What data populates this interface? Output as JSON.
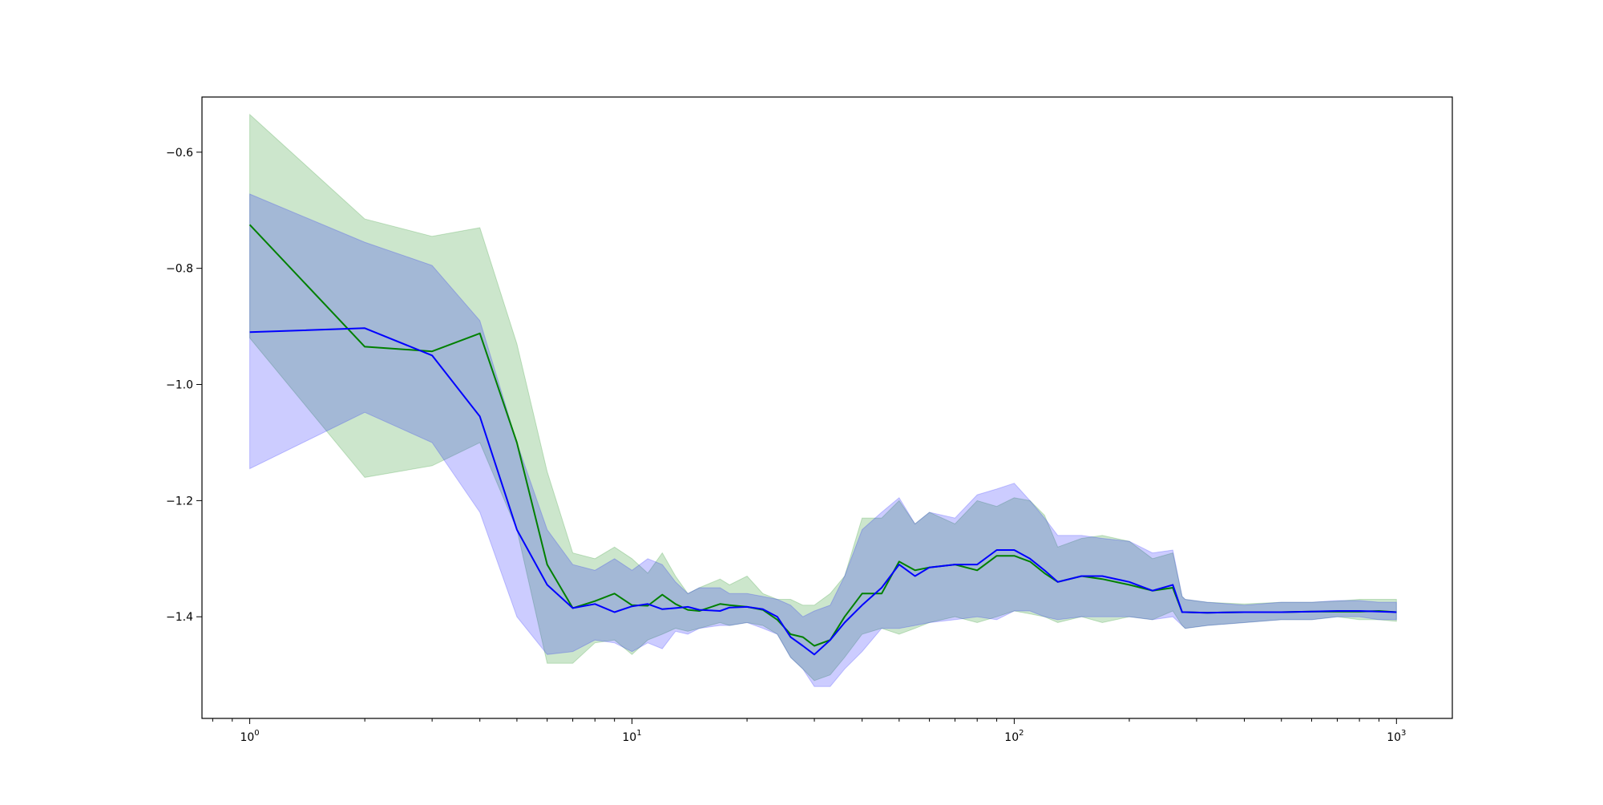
{
  "chart_data": {
    "type": "line",
    "title": "",
    "xlabel": "",
    "ylabel": "",
    "xscale": "log",
    "xlim": [
      0.75,
      1400
    ],
    "ylim": [
      -1.575,
      -0.505
    ],
    "grid": false,
    "x_ticks": [
      {
        "value": 1,
        "base": "10",
        "exp": "0"
      },
      {
        "value": 10,
        "base": "10",
        "exp": "1"
      },
      {
        "value": 100,
        "base": "10",
        "exp": "2"
      },
      {
        "value": 1000,
        "base": "10",
        "exp": "3"
      }
    ],
    "y_ticks": [
      {
        "value": -0.6,
        "label": "−0.6"
      },
      {
        "value": -0.8,
        "label": "−0.8"
      },
      {
        "value": -1.0,
        "label": "−1.0"
      },
      {
        "value": -1.2,
        "label": "−1.2"
      },
      {
        "value": -1.4,
        "label": "−1.4"
      }
    ],
    "series": [
      {
        "color": "#008000",
        "band_color": "#008000",
        "band_opacity": 0.2,
        "x": [
          1,
          2,
          3,
          4,
          5,
          6,
          7,
          8,
          9,
          10,
          11,
          12,
          13,
          14,
          15,
          17,
          18,
          20,
          22,
          24,
          26,
          28,
          30,
          33,
          36,
          40,
          45,
          50,
          55,
          60,
          70,
          80,
          90,
          100,
          110,
          120,
          130,
          150,
          170,
          200,
          230,
          260,
          275,
          280,
          320,
          400,
          500,
          600,
          700,
          800,
          900,
          1000
        ],
        "y": [
          -0.725,
          -0.935,
          -0.943,
          -0.912,
          -1.1,
          -1.31,
          -1.385,
          -1.373,
          -1.36,
          -1.38,
          -1.381,
          -1.362,
          -1.378,
          -1.388,
          -1.39,
          -1.378,
          -1.38,
          -1.383,
          -1.388,
          -1.405,
          -1.43,
          -1.435,
          -1.45,
          -1.44,
          -1.4,
          -1.36,
          -1.36,
          -1.305,
          -1.32,
          -1.315,
          -1.31,
          -1.32,
          -1.295,
          -1.295,
          -1.305,
          -1.325,
          -1.34,
          -1.33,
          -1.335,
          -1.345,
          -1.355,
          -1.35,
          -1.392,
          -1.392,
          -1.393,
          -1.392,
          -1.392,
          -1.391,
          -1.391,
          -1.391,
          -1.39,
          -1.392
        ],
        "lower": [
          -0.92,
          -1.16,
          -1.14,
          -1.1,
          -1.25,
          -1.48,
          -1.48,
          -1.445,
          -1.44,
          -1.465,
          -1.44,
          -1.43,
          -1.42,
          -1.425,
          -1.42,
          -1.41,
          -1.415,
          -1.41,
          -1.415,
          -1.43,
          -1.47,
          -1.49,
          -1.51,
          -1.5,
          -1.47,
          -1.43,
          -1.42,
          -1.43,
          -1.42,
          -1.41,
          -1.4,
          -1.41,
          -1.4,
          -1.39,
          -1.395,
          -1.4,
          -1.41,
          -1.4,
          -1.41,
          -1.4,
          -1.405,
          -1.39,
          -1.415,
          -1.42,
          -1.415,
          -1.41,
          -1.405,
          -1.405,
          -1.4,
          -1.405,
          -1.405,
          -1.408
        ],
        "upper": [
          -0.535,
          -0.715,
          -0.745,
          -0.73,
          -0.93,
          -1.15,
          -1.29,
          -1.3,
          -1.28,
          -1.3,
          -1.325,
          -1.29,
          -1.33,
          -1.36,
          -1.35,
          -1.335,
          -1.345,
          -1.33,
          -1.36,
          -1.37,
          -1.37,
          -1.38,
          -1.38,
          -1.36,
          -1.33,
          -1.23,
          -1.23,
          -1.2,
          -1.24,
          -1.22,
          -1.24,
          -1.2,
          -1.21,
          -1.195,
          -1.2,
          -1.225,
          -1.28,
          -1.265,
          -1.26,
          -1.27,
          -1.3,
          -1.29,
          -1.365,
          -1.37,
          -1.375,
          -1.378,
          -1.375,
          -1.375,
          -1.373,
          -1.37,
          -1.37,
          -1.37
        ]
      },
      {
        "color": "#0000ff",
        "band_color": "#0000ff",
        "band_opacity": 0.2,
        "x": [
          1,
          2,
          3,
          4,
          5,
          6,
          7,
          8,
          9,
          10,
          11,
          12,
          13,
          14,
          15,
          17,
          18,
          20,
          22,
          24,
          26,
          28,
          30,
          33,
          36,
          40,
          45,
          50,
          55,
          60,
          70,
          80,
          90,
          100,
          110,
          120,
          130,
          150,
          170,
          200,
          230,
          260,
          275,
          280,
          320,
          400,
          500,
          600,
          700,
          800,
          900,
          1000
        ],
        "y": [
          -0.91,
          -0.903,
          -0.95,
          -1.055,
          -1.25,
          -1.345,
          -1.385,
          -1.378,
          -1.392,
          -1.382,
          -1.378,
          -1.387,
          -1.385,
          -1.383,
          -1.388,
          -1.39,
          -1.384,
          -1.383,
          -1.387,
          -1.4,
          -1.435,
          -1.45,
          -1.465,
          -1.44,
          -1.41,
          -1.38,
          -1.35,
          -1.31,
          -1.33,
          -1.315,
          -1.31,
          -1.31,
          -1.285,
          -1.285,
          -1.3,
          -1.32,
          -1.34,
          -1.33,
          -1.33,
          -1.34,
          -1.355,
          -1.345,
          -1.392,
          -1.392,
          -1.393,
          -1.392,
          -1.392,
          -1.391,
          -1.39,
          -1.39,
          -1.391,
          -1.392
        ],
        "lower": [
          -1.145,
          -1.048,
          -1.1,
          -1.22,
          -1.4,
          -1.465,
          -1.46,
          -1.44,
          -1.445,
          -1.46,
          -1.445,
          -1.455,
          -1.425,
          -1.43,
          -1.42,
          -1.415,
          -1.415,
          -1.41,
          -1.42,
          -1.43,
          -1.47,
          -1.49,
          -1.52,
          -1.52,
          -1.49,
          -1.46,
          -1.42,
          -1.42,
          -1.415,
          -1.41,
          -1.405,
          -1.4,
          -1.405,
          -1.39,
          -1.39,
          -1.4,
          -1.405,
          -1.4,
          -1.4,
          -1.4,
          -1.405,
          -1.4,
          -1.415,
          -1.42,
          -1.415,
          -1.41,
          -1.405,
          -1.405,
          -1.4,
          -1.4,
          -1.405,
          -1.405
        ],
        "upper": [
          -0.672,
          -0.755,
          -0.795,
          -0.89,
          -1.1,
          -1.25,
          -1.31,
          -1.32,
          -1.3,
          -1.32,
          -1.3,
          -1.31,
          -1.34,
          -1.36,
          -1.35,
          -1.35,
          -1.36,
          -1.36,
          -1.365,
          -1.37,
          -1.38,
          -1.4,
          -1.39,
          -1.38,
          -1.33,
          -1.25,
          -1.22,
          -1.195,
          -1.24,
          -1.22,
          -1.23,
          -1.19,
          -1.18,
          -1.17,
          -1.2,
          -1.23,
          -1.26,
          -1.26,
          -1.265,
          -1.27,
          -1.29,
          -1.285,
          -1.365,
          -1.37,
          -1.375,
          -1.38,
          -1.375,
          -1.375,
          -1.372,
          -1.372,
          -1.375,
          -1.375
        ]
      }
    ]
  }
}
